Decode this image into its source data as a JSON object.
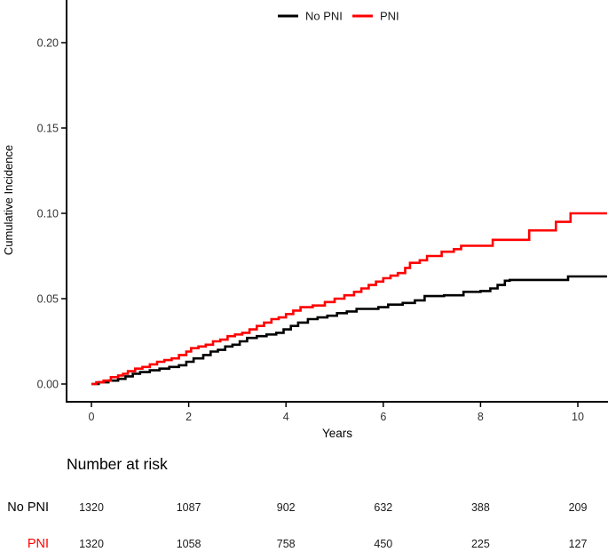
{
  "chart_data": {
    "type": "line",
    "subtype": "step-cumulative-incidence",
    "title": "",
    "xlabel": "Years",
    "ylabel": "Cumulative Incidence",
    "xlim": [
      -0.5,
      10.6
    ],
    "ylim": [
      0,
      0.225
    ],
    "x_ticks": [
      0,
      2,
      4,
      6,
      8,
      10
    ],
    "y_ticks": [
      0.0,
      0.05,
      0.1,
      0.15,
      0.2
    ],
    "grid": false,
    "legend_position": "top-center",
    "series": [
      {
        "name": "No PNI",
        "color": "#000000",
        "points": [
          [
            0,
            0
          ],
          [
            0.15,
            0.001
          ],
          [
            0.35,
            0.002
          ],
          [
            0.55,
            0.003
          ],
          [
            0.7,
            0.0045
          ],
          [
            0.85,
            0.006
          ],
          [
            1.0,
            0.007
          ],
          [
            1.2,
            0.008
          ],
          [
            1.4,
            0.009
          ],
          [
            1.6,
            0.01
          ],
          [
            1.8,
            0.011
          ],
          [
            1.95,
            0.013
          ],
          [
            2.1,
            0.015
          ],
          [
            2.3,
            0.017
          ],
          [
            2.45,
            0.019
          ],
          [
            2.6,
            0.02
          ],
          [
            2.75,
            0.022
          ],
          [
            2.9,
            0.023
          ],
          [
            3.05,
            0.025
          ],
          [
            3.2,
            0.027
          ],
          [
            3.4,
            0.028
          ],
          [
            3.6,
            0.029
          ],
          [
            3.8,
            0.03
          ],
          [
            3.95,
            0.032
          ],
          [
            4.1,
            0.034
          ],
          [
            4.25,
            0.036
          ],
          [
            4.45,
            0.038
          ],
          [
            4.65,
            0.039
          ],
          [
            4.85,
            0.04
          ],
          [
            5.05,
            0.0415
          ],
          [
            5.25,
            0.0425
          ],
          [
            5.45,
            0.044
          ],
          [
            5.9,
            0.045
          ],
          [
            6.1,
            0.0465
          ],
          [
            6.4,
            0.0475
          ],
          [
            6.65,
            0.049
          ],
          [
            6.85,
            0.0515
          ],
          [
            7.25,
            0.052
          ],
          [
            7.65,
            0.054
          ],
          [
            8.0,
            0.0545
          ],
          [
            8.2,
            0.056
          ],
          [
            8.35,
            0.058
          ],
          [
            8.5,
            0.0605
          ],
          [
            8.6,
            0.061
          ],
          [
            9.8,
            0.063
          ],
          [
            10.6,
            0.063
          ]
        ]
      },
      {
        "name": "PNI",
        "color": "#ff0000",
        "points": [
          [
            0,
            0
          ],
          [
            0.1,
            0.001
          ],
          [
            0.25,
            0.002
          ],
          [
            0.4,
            0.004
          ],
          [
            0.55,
            0.005
          ],
          [
            0.65,
            0.006
          ],
          [
            0.75,
            0.0075
          ],
          [
            0.9,
            0.009
          ],
          [
            1.05,
            0.01
          ],
          [
            1.2,
            0.0115
          ],
          [
            1.35,
            0.013
          ],
          [
            1.5,
            0.014
          ],
          [
            1.65,
            0.015
          ],
          [
            1.8,
            0.017
          ],
          [
            1.95,
            0.019
          ],
          [
            2.05,
            0.021
          ],
          [
            2.2,
            0.022
          ],
          [
            2.35,
            0.023
          ],
          [
            2.5,
            0.025
          ],
          [
            2.65,
            0.026
          ],
          [
            2.8,
            0.028
          ],
          [
            2.95,
            0.029
          ],
          [
            3.1,
            0.03
          ],
          [
            3.25,
            0.032
          ],
          [
            3.4,
            0.034
          ],
          [
            3.55,
            0.036
          ],
          [
            3.7,
            0.038
          ],
          [
            3.85,
            0.039
          ],
          [
            4.0,
            0.041
          ],
          [
            4.15,
            0.043
          ],
          [
            4.3,
            0.045
          ],
          [
            4.55,
            0.046
          ],
          [
            4.8,
            0.048
          ],
          [
            5.0,
            0.05
          ],
          [
            5.2,
            0.052
          ],
          [
            5.4,
            0.054
          ],
          [
            5.55,
            0.056
          ],
          [
            5.7,
            0.058
          ],
          [
            5.85,
            0.06
          ],
          [
            6.0,
            0.062
          ],
          [
            6.15,
            0.0635
          ],
          [
            6.3,
            0.065
          ],
          [
            6.45,
            0.068
          ],
          [
            6.55,
            0.071
          ],
          [
            6.75,
            0.0725
          ],
          [
            6.9,
            0.075
          ],
          [
            7.2,
            0.0775
          ],
          [
            7.45,
            0.079
          ],
          [
            7.6,
            0.081
          ],
          [
            8.25,
            0.0845
          ],
          [
            9.0,
            0.09
          ],
          [
            9.55,
            0.095
          ],
          [
            9.85,
            0.1
          ],
          [
            10.6,
            0.1
          ]
        ]
      }
    ]
  },
  "risk_table": {
    "title": "Number at risk",
    "time_points": [
      0,
      2,
      4,
      6,
      8,
      10
    ],
    "rows": [
      {
        "label": "No PNI",
        "color": "#000000",
        "values": [
          "1320",
          "1087",
          "902",
          "632",
          "388",
          "209"
        ]
      },
      {
        "label": "PNI",
        "color": "#ff0000",
        "values": [
          "1320",
          "1058",
          "758",
          "450",
          "225",
          "127"
        ]
      }
    ]
  }
}
